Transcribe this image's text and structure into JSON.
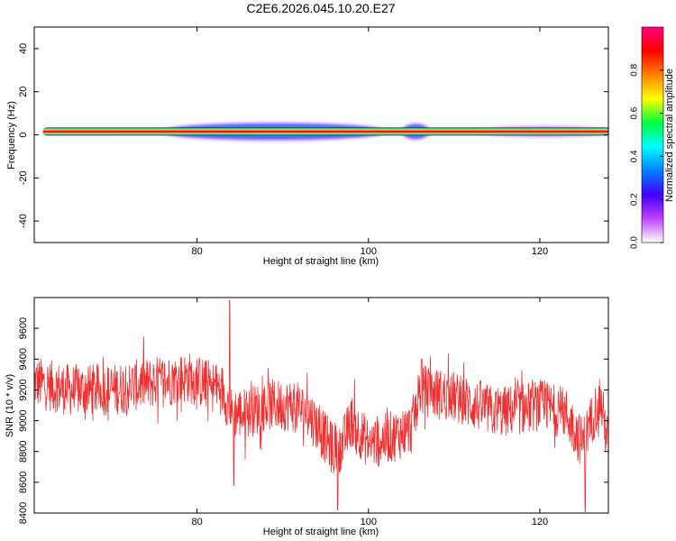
{
  "title": "C2E6.2026.045.10.20.E27",
  "chart_data": [
    {
      "type": "heatmap",
      "name": "spectrogram",
      "xlabel": "Height of straight line (km)",
      "ylabel": "Frequency (Hz)",
      "xlim": [
        61,
        128
      ],
      "ylim": [
        -50,
        50
      ],
      "xticks": [
        80,
        100,
        120
      ],
      "yticks": [
        -40,
        -20,
        0,
        20,
        40
      ],
      "grid": false,
      "band_center": 1.5,
      "band_extent": [
        62,
        128
      ],
      "spread_regions": [
        {
          "x": [
            76,
            102
          ],
          "half_width": 4.5,
          "level": "high"
        },
        {
          "x": [
            104,
            107
          ],
          "half_width": 4,
          "level": "high"
        },
        {
          "x": [
            113,
            128
          ],
          "half_width": 2.5,
          "level": "low"
        }
      ],
      "colorbar": {
        "label": "Normalized spectral amplitude",
        "range": [
          0,
          1
        ],
        "ticks": [
          "0.0",
          "0.2",
          "0.4",
          "0.6",
          "0.8"
        ],
        "colors": [
          "#ffffff",
          "#c040ff",
          "#4000ff",
          "#0080ff",
          "#00ffff",
          "#00ff40",
          "#ffff00",
          "#ff8000",
          "#ff0000",
          "#ff0080"
        ]
      }
    },
    {
      "type": "line",
      "name": "snr",
      "xlabel": "Height of straight line (km)",
      "ylabel": "SNR (10 * v/v)",
      "xlim": [
        61,
        128
      ],
      "ylim": [
        8400,
        9800
      ],
      "xticks": [
        80,
        100,
        120
      ],
      "yticks": [
        8400,
        8600,
        8800,
        9000,
        9200,
        9400,
        9600
      ],
      "color": "#f03030",
      "grid": false,
      "baseline": [
        [
          61,
          9250
        ],
        [
          65,
          9200
        ],
        [
          70,
          9200
        ],
        [
          75,
          9250
        ],
        [
          79,
          9280
        ],
        [
          83,
          9200
        ],
        [
          84,
          9050
        ],
        [
          86,
          9050
        ],
        [
          88,
          9100
        ],
        [
          91,
          9100
        ],
        [
          93,
          9050
        ],
        [
          96,
          8800
        ],
        [
          97,
          8850
        ],
        [
          98,
          9000
        ],
        [
          100,
          8850
        ],
        [
          103,
          8900
        ],
        [
          105,
          8950
        ],
        [
          106,
          9200
        ],
        [
          110,
          9150
        ],
        [
          115,
          9050
        ],
        [
          120,
          9100
        ],
        [
          123,
          9050
        ],
        [
          125,
          8850
        ],
        [
          126,
          9000
        ],
        [
          127,
          9150
        ],
        [
          128,
          8850
        ]
      ],
      "notable_points": [
        {
          "x": 83.8,
          "y": 9780
        },
        {
          "x": 84.3,
          "y": 8580
        },
        {
          "x": 96.4,
          "y": 8420
        },
        {
          "x": 125.3,
          "y": 8410
        },
        {
          "x": 106.2,
          "y": 9400
        }
      ]
    }
  ]
}
